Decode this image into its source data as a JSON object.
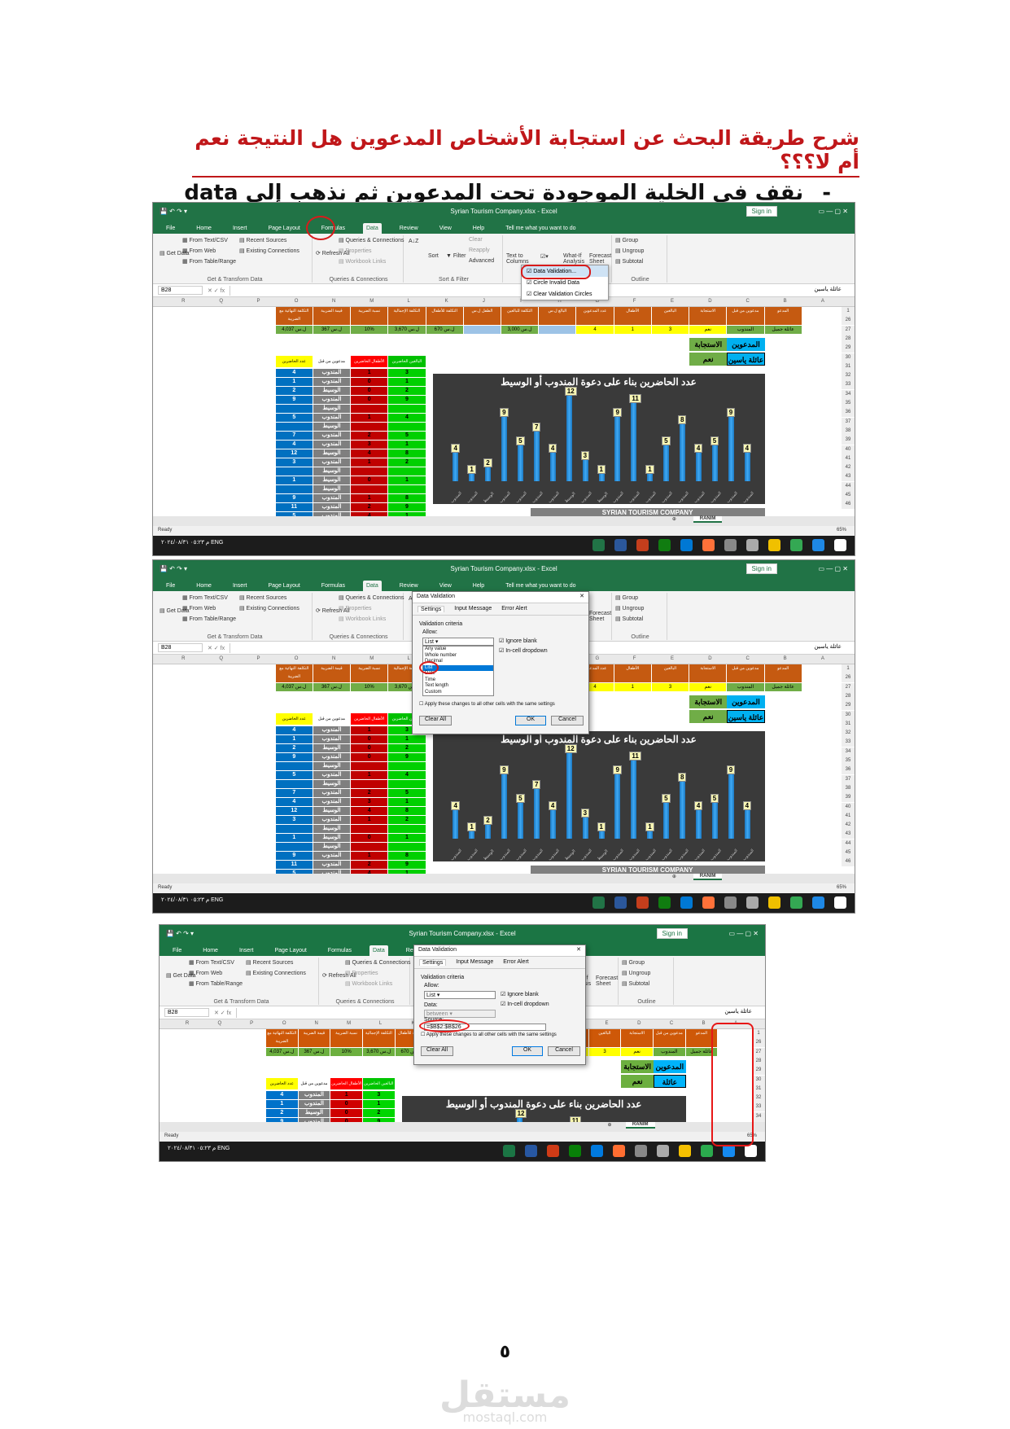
{
  "heading": "شرح طريقة البحث عن استجابة الأشخاص المدعوين هل النتيجة نعم أم لا؟؟؟",
  "instruction": "نقف في الخلية الموجودة تحت المدعوين ثم نذهب إلى data",
  "instruction_dash": "-",
  "excel": {
    "window_title": "Syrian Tourism Company.xlsx  -  Excel",
    "sign_in": "Sign in",
    "tabs": [
      "File",
      "Home",
      "Insert",
      "Page Layout",
      "Formulas",
      "Data",
      "Review",
      "View",
      "Help",
      "Tell me what you want to do"
    ],
    "ribbon": {
      "get_data": "Get Data",
      "from_text": "From Text/CSV",
      "from_web": "From Web",
      "from_table": "From Table/Range",
      "recent_sources": "Recent Sources",
      "existing_connections": "Existing Connections",
      "group_get_transform": "Get & Transform Data",
      "refresh_all": "Refresh All",
      "queries_connections": "Queries & Connections",
      "properties": "Properties",
      "workbook_links": "Workbook Links",
      "group_queries": "Queries & Connections",
      "sort": "Sort",
      "filter": "Filter",
      "clear": "Clear",
      "reapply": "Reapply",
      "advanced": "Advanced",
      "group_sort_filter": "Sort & Filter",
      "text_to_columns": "Text to Columns",
      "data_tools": "Data",
      "what_if": "What-If Analysis",
      "forecast_sheet": "Forecast Sheet",
      "group_outline": "Outline",
      "group": "Group",
      "ungroup": "Ungroup",
      "subtotal": "Subtotal"
    },
    "dropdown_menu": [
      "Data Validation...",
      "Circle Invalid Data",
      "Clear Validation Circles"
    ],
    "name_box": "B28",
    "formula_value": "عائلة ياسين",
    "columns": [
      "R",
      "Q",
      "P",
      "O",
      "N",
      "M",
      "L",
      "K",
      "J",
      "I",
      "H",
      "G",
      "F",
      "E",
      "D",
      "C",
      "B",
      "A"
    ],
    "header_row": {
      "O": "التكلفة النهائية مع الضريبة",
      "N": "قيمة الضريبة",
      "M": "نسبة الضريبة",
      "L": "التكلفة الإجمالية",
      "K": "التكلفة للأطفال",
      "J": "الطفل ل.س",
      "I": "التكلفة للبالغين",
      "H": "البالغ ل.س",
      "G": "عدد المدعوين",
      "F": "الأطفال",
      "E": "البالغين",
      "D": "الاستجابة",
      "C": "مدعوين من قبل",
      "B": "المدعو"
    },
    "row26": {
      "O": "4,037 ل.س",
      "N": "367 ل.س",
      "M": "10%",
      "L": "3,670 ل.س",
      "K": "670 ل.س",
      "I": "3,000 ل.س",
      "G": "4",
      "F": "1",
      "E": "3",
      "D": "نعم",
      "C": "المندوب",
      "B": "عائلة جميل"
    },
    "lookup": {
      "label_response": "الاستجابة",
      "label_invited": "المدعوين",
      "value_response": "نعم",
      "value_invited": "عائلة ياسين"
    },
    "table2_headers": [
      "عدد الحاضرين",
      "مدعوين من قبل",
      "الأطفال الحاضرين",
      "البالغين الحاضرين"
    ],
    "table2_rows": [
      [
        "4",
        "المندوب",
        "1",
        "3"
      ],
      [
        "1",
        "المندوب",
        "0",
        "1"
      ],
      [
        "2",
        "الوسيط",
        "0",
        "2"
      ],
      [
        "9",
        "المندوب",
        "0",
        "9"
      ],
      [
        "",
        "الوسيط",
        "",
        ""
      ],
      [
        "5",
        "المندوب",
        "1",
        "4"
      ],
      [
        "",
        "الوسيط",
        "",
        ""
      ],
      [
        "7",
        "المندوب",
        "2",
        "5"
      ],
      [
        "4",
        "المندوب",
        "3",
        "1"
      ],
      [
        "12",
        "الوسيط",
        "4",
        "8"
      ],
      [
        "3",
        "المندوب",
        "1",
        "2"
      ],
      [
        "",
        "الوسيط",
        "",
        ""
      ],
      [
        "1",
        "الوسيط",
        "0",
        "1"
      ],
      [
        "",
        "الوسيط",
        "",
        ""
      ],
      [
        "9",
        "المندوب",
        "1",
        "8"
      ],
      [
        "11",
        "المندوب",
        "2",
        "9"
      ],
      [
        "5",
        "المندوب",
        "4",
        "1"
      ]
    ],
    "row_numbers": [
      "1",
      "26",
      "27",
      "28",
      "29",
      "30",
      "31",
      "32",
      "33",
      "34",
      "35",
      "36",
      "37",
      "38",
      "39",
      "40",
      "41",
      "42",
      "43",
      "44",
      "45",
      "46"
    ],
    "company_banner": "SYRIAN TOURISM COMPANY",
    "company_row_value": "99,100 ل.س",
    "company_row_label": "مجموع التكلفة الإجمالية مع الضريبة",
    "sheet_tab": "RANIM",
    "status_ready": "Ready",
    "zoom": "65%",
    "taskbar_lang": "ENG",
    "taskbar_time": "م ٠٥:٢٣",
    "taskbar_date": "٢٠٢٤/٠٨/٣١"
  },
  "chart_data": {
    "type": "bar",
    "title": "عدد الحاضرين بناء على دعوة المندوب أو الوسيط",
    "values": [
      4,
      1,
      2,
      9,
      5,
      7,
      4,
      12,
      3,
      1,
      9,
      11,
      1,
      5,
      8,
      4,
      5,
      9,
      4
    ],
    "categories": [
      "المندوب",
      "المندوب",
      "الوسيط",
      "المندوب",
      "المندوب",
      "المندوب",
      "المندوب",
      "الوسيط",
      "المندوب",
      "الوسيط",
      "المندوب",
      "المندوب",
      "المندوب",
      "المندوب",
      "المندوب",
      "المندوب",
      "المندوب",
      "المندوب",
      "المندوب"
    ],
    "bar_color": "#2a8fd6",
    "background": "#3a3a3a"
  },
  "dialog": {
    "title": "Data Validation",
    "tabs": [
      "Settings",
      "Input Message",
      "Error Alert"
    ],
    "criteria": "Validation criteria",
    "allow": "Allow:",
    "allow_value": "List",
    "allow_options": [
      "Any value",
      "Whole number",
      "Decimal",
      "List",
      "Date",
      "Time",
      "Text length",
      "Custom"
    ],
    "ignore_blank": "Ignore blank",
    "in_cell_dropdown": "In-cell dropdown",
    "apply_all": "Apply these changes to all other cells with the same settings",
    "clear_all": "Clear All",
    "ok": "OK",
    "cancel": "Cancel",
    "data_label": "Data:",
    "data_value": "between",
    "source_label": "Source:",
    "source_value": "=$B$2:$B$26"
  },
  "page_number": "٥",
  "watermark_ar": "مستقل",
  "watermark_en": "mostaql.com"
}
